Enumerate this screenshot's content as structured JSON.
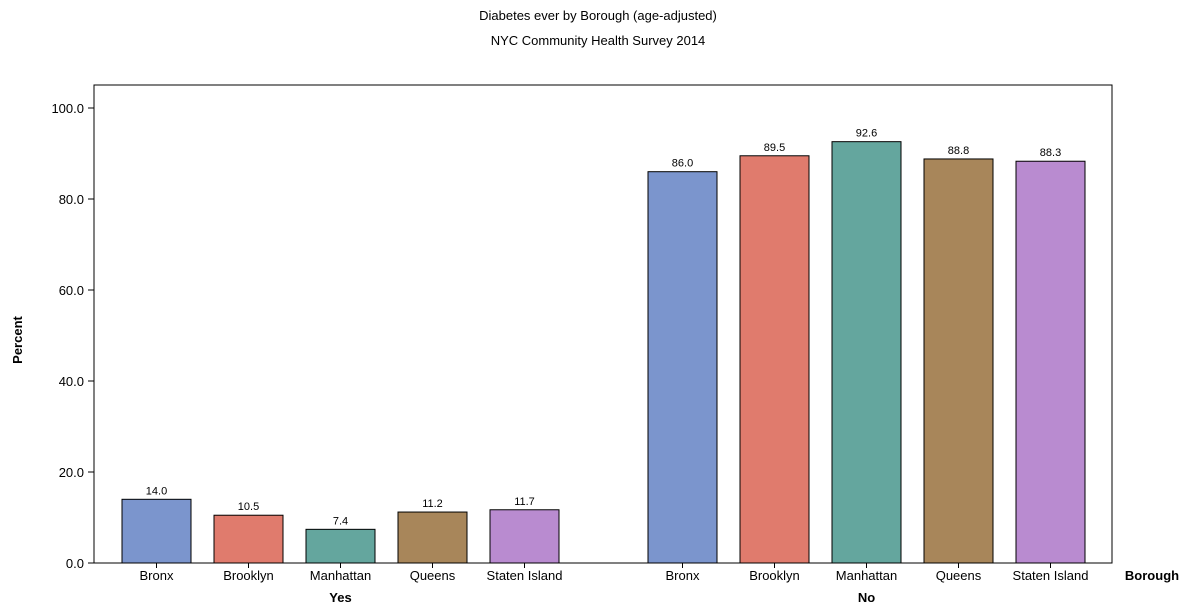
{
  "chart_data": {
    "type": "bar",
    "title": "Diabetes ever by Borough (age-adjusted)",
    "subtitle": "NYC Community Health Survey 2014",
    "ylabel": "Percent",
    "xlabel": "Borough",
    "ylim": [
      0,
      100
    ],
    "yticks": [
      "0.0",
      "20.0",
      "40.0",
      "60.0",
      "80.0",
      "100.0"
    ],
    "groups": [
      {
        "name": "Yes",
        "categories": [
          "Bronx",
          "Brooklyn",
          "Manhattan",
          "Queens",
          "Staten Island"
        ],
        "values": [
          14.0,
          10.5,
          7.4,
          11.2,
          11.7
        ],
        "labels": [
          "14.0",
          "10.5",
          "7.4",
          "11.2",
          "11.7"
        ]
      },
      {
        "name": "No",
        "categories": [
          "Bronx",
          "Brooklyn",
          "Manhattan",
          "Queens",
          "Staten Island"
        ],
        "values": [
          86.0,
          89.5,
          92.6,
          88.8,
          88.3
        ],
        "labels": [
          "86.0",
          "89.5",
          "92.6",
          "88.8",
          "88.3"
        ]
      }
    ],
    "colors": [
      "#7b95cd",
      "#e07b6d",
      "#64a69e",
      "#a8865a",
      "#b98bd0"
    ],
    "grid": false,
    "legend": "none"
  }
}
